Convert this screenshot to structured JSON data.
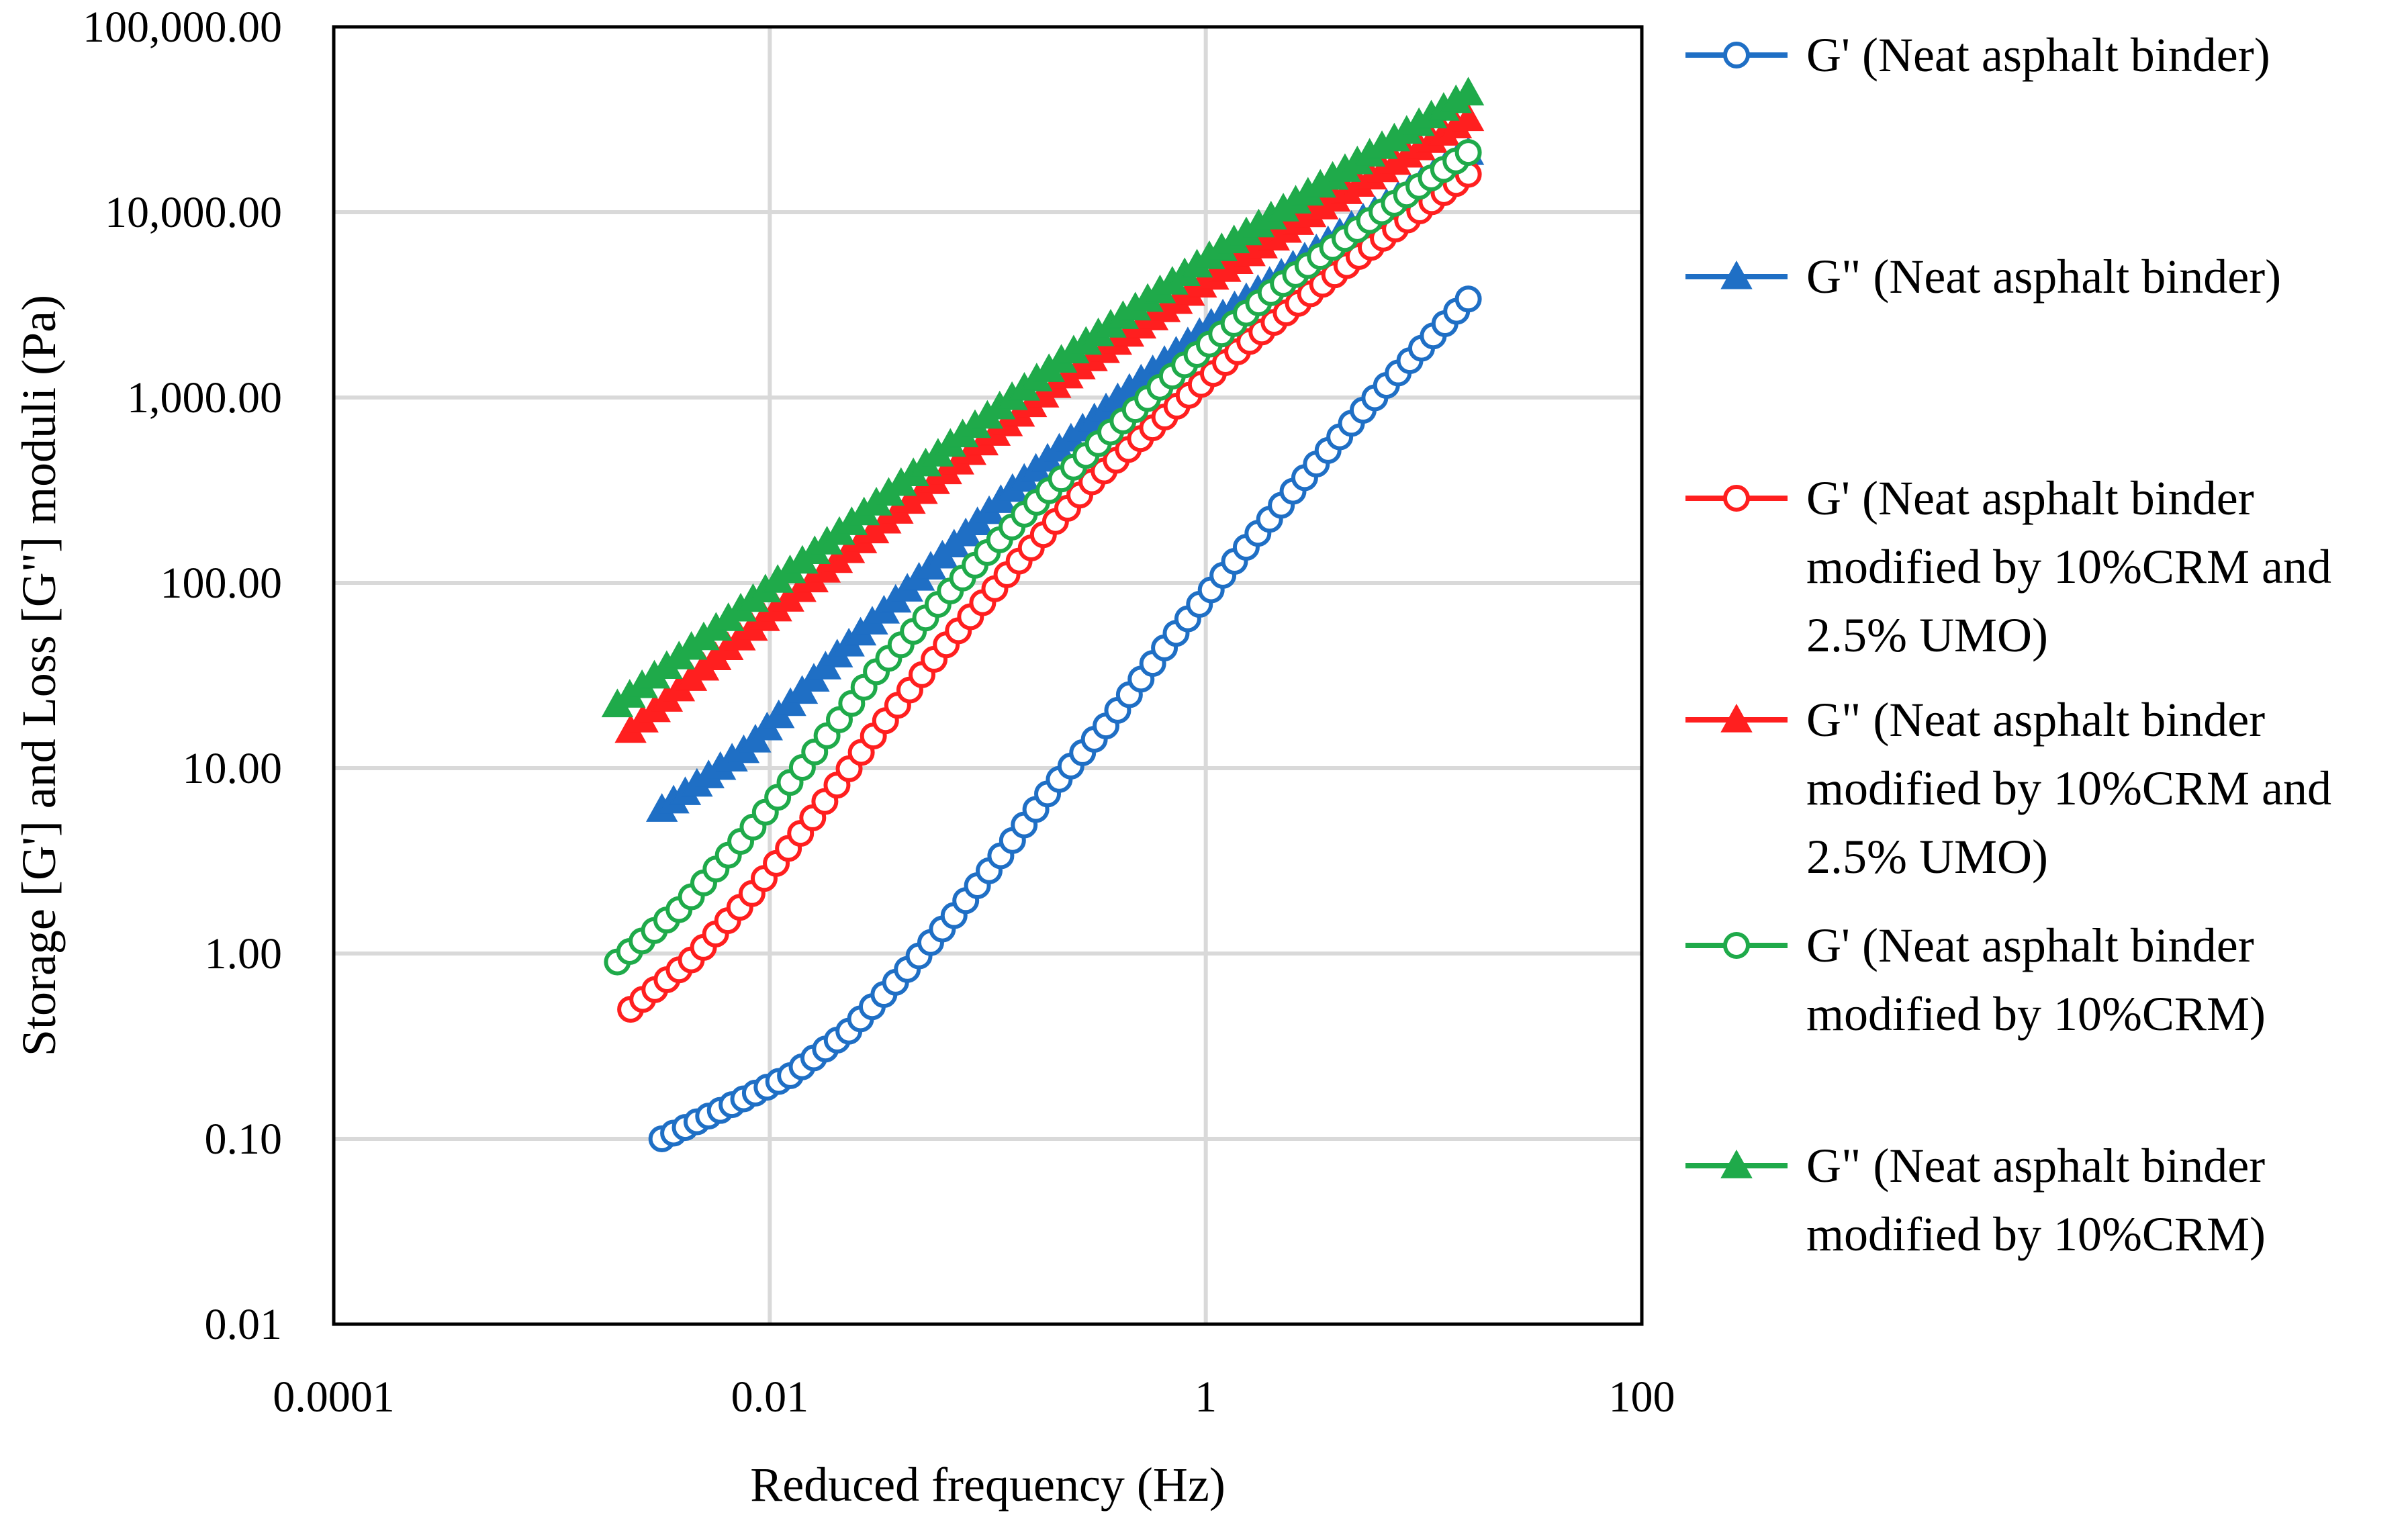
{
  "chart_data": {
    "type": "scatter",
    "title": "",
    "xlabel": "Reduced frequency (Hz)",
    "ylabel": "Storage [G'] and Loss [G\"] moduli (Pa)",
    "xscale": "log",
    "yscale": "log",
    "xlim": [
      0.0001,
      100
    ],
    "ylim": [
      0.01,
      100000
    ],
    "x_ticks": [
      {
        "value": 0.0001,
        "label": "0.0001"
      },
      {
        "value": 0.01,
        "label": "0.01"
      },
      {
        "value": 1,
        "label": "1"
      },
      {
        "value": 100,
        "label": "100"
      }
    ],
    "y_ticks": [
      {
        "value": 0.01,
        "label": "0.01"
      },
      {
        "value": 0.1,
        "label": "0.10"
      },
      {
        "value": 1,
        "label": "1.00"
      },
      {
        "value": 10,
        "label": "10.00"
      },
      {
        "value": 100,
        "label": "100.00"
      },
      {
        "value": 1000,
        "label": "1,000.00"
      },
      {
        "value": 10000,
        "label": "10,000.00"
      },
      {
        "value": 100000,
        "label": "100,000.00"
      }
    ],
    "grid": true,
    "legend_position": "right",
    "series": [
      {
        "name": "G' (Neat asphalt binder)",
        "legend_lines": [
          "G' (Neat asphalt binder)"
        ],
        "color": "#1f6fc5",
        "marker": "circle-open",
        "x_range": [
          0.0032,
          16.0
        ],
        "knots": [
          {
            "x": 0.0032,
            "y": 0.1
          },
          {
            "x": 0.0065,
            "y": 0.15
          },
          {
            "x": 0.0125,
            "y": 0.22
          },
          {
            "x": 0.023,
            "y": 0.38
          },
          {
            "x": 0.04,
            "y": 0.75
          },
          {
            "x": 0.07,
            "y": 1.6
          },
          {
            "x": 0.12,
            "y": 3.6
          },
          {
            "x": 0.2,
            "y": 8.0
          },
          {
            "x": 0.35,
            "y": 17.0
          },
          {
            "x": 0.65,
            "y": 45.0
          },
          {
            "x": 1.2,
            "y": 110.0
          },
          {
            "x": 2.5,
            "y": 310.0
          },
          {
            "x": 5.0,
            "y": 800.0
          },
          {
            "x": 10.0,
            "y": 1900.0
          },
          {
            "x": 16.0,
            "y": 3400.0
          }
        ]
      },
      {
        "name": "G\" (Neat asphalt binder)",
        "legend_lines": [
          "G\" (Neat asphalt binder)"
        ],
        "color": "#1f6fc5",
        "marker": "triangle-filled",
        "x_range": [
          0.0032,
          16.0
        ],
        "knots": [
          {
            "x": 0.0032,
            "y": 6.0
          },
          {
            "x": 0.008,
            "y": 13.0
          },
          {
            "x": 0.02,
            "y": 40.0
          },
          {
            "x": 0.05,
            "y": 110.0
          },
          {
            "x": 0.13,
            "y": 320.0
          },
          {
            "x": 0.4,
            "y": 1000.0
          },
          {
            "x": 1.2,
            "y": 2800.0
          },
          {
            "x": 4.0,
            "y": 7500.0
          },
          {
            "x": 16.0,
            "y": 21000.0
          }
        ]
      },
      {
        "name": "G' (Neat asphalt binder modified by 10%CRM and 2.5% UMO)",
        "legend_lines": [
          "G' (Neat asphalt binder",
          "modified by 10%CRM and",
          "2.5% UMO)"
        ],
        "color": "#ff1f1f",
        "marker": "circle-open",
        "x_range": [
          0.0023,
          16.0
        ],
        "knots": [
          {
            "x": 0.0023,
            "y": 0.5
          },
          {
            "x": 0.0045,
            "y": 0.95
          },
          {
            "x": 0.008,
            "y": 2.0
          },
          {
            "x": 0.015,
            "y": 5.0
          },
          {
            "x": 0.03,
            "y": 15.0
          },
          {
            "x": 0.06,
            "y": 42.0
          },
          {
            "x": 0.13,
            "y": 120.0
          },
          {
            "x": 0.3,
            "y": 350.0
          },
          {
            "x": 0.7,
            "y": 850.0
          },
          {
            "x": 1.5,
            "y": 1900.0
          },
          {
            "x": 4.0,
            "y": 4700.0
          },
          {
            "x": 16.0,
            "y": 16000.0
          }
        ]
      },
      {
        "name": "G\" (Neat asphalt binder modified by 10%CRM and 2.5% UMO)",
        "legend_lines": [
          "G\" (Neat asphalt binder",
          "modified by 10%CRM and",
          "2.5% UMO)"
        ],
        "color": "#ff1f1f",
        "marker": "triangle-filled",
        "x_range": [
          0.0023,
          16.0
        ],
        "knots": [
          {
            "x": 0.0023,
            "y": 16.0
          },
          {
            "x": 0.006,
            "y": 42.0
          },
          {
            "x": 0.02,
            "y": 130.0
          },
          {
            "x": 0.07,
            "y": 430.0
          },
          {
            "x": 0.25,
            "y": 1400.0
          },
          {
            "x": 1.0,
            "y": 4200.0
          },
          {
            "x": 4.0,
            "y": 12000.0
          },
          {
            "x": 16.0,
            "y": 32000.0
          }
        ]
      },
      {
        "name": "G' (Neat asphalt binder modified by 10%CRM)",
        "legend_lines": [
          "G' (Neat asphalt binder",
          "modified by 10%CRM)"
        ],
        "color": "#1faa4a",
        "marker": "circle-open",
        "x_range": [
          0.002,
          16.0
        ],
        "knots": [
          {
            "x": 0.002,
            "y": 0.9
          },
          {
            "x": 0.004,
            "y": 1.8
          },
          {
            "x": 0.008,
            "y": 4.5
          },
          {
            "x": 0.015,
            "y": 11.0
          },
          {
            "x": 0.03,
            "y": 32.0
          },
          {
            "x": 0.07,
            "y": 95.0
          },
          {
            "x": 0.15,
            "y": 240.0
          },
          {
            "x": 0.35,
            "y": 620.0
          },
          {
            "x": 0.8,
            "y": 1500.0
          },
          {
            "x": 2.0,
            "y": 3700.0
          },
          {
            "x": 6.0,
            "y": 9500.0
          },
          {
            "x": 16.0,
            "y": 21000.0
          }
        ]
      },
      {
        "name": "G\" (Neat asphalt binder modified by 10%CRM)",
        "legend_lines": [
          "G\" (Neat asphalt binder",
          "modified by 10%CRM)"
        ],
        "color": "#1faa4a",
        "marker": "triangle-filled",
        "x_range": [
          0.002,
          16.0
        ],
        "knots": [
          {
            "x": 0.002,
            "y": 22.0
          },
          {
            "x": 0.006,
            "y": 60.0
          },
          {
            "x": 0.02,
            "y": 180.0
          },
          {
            "x": 0.07,
            "y": 580.0
          },
          {
            "x": 0.25,
            "y": 1800.0
          },
          {
            "x": 1.0,
            "y": 5600.0
          },
          {
            "x": 4.0,
            "y": 16000.0
          },
          {
            "x": 16.0,
            "y": 44000.0
          }
        ]
      }
    ]
  }
}
